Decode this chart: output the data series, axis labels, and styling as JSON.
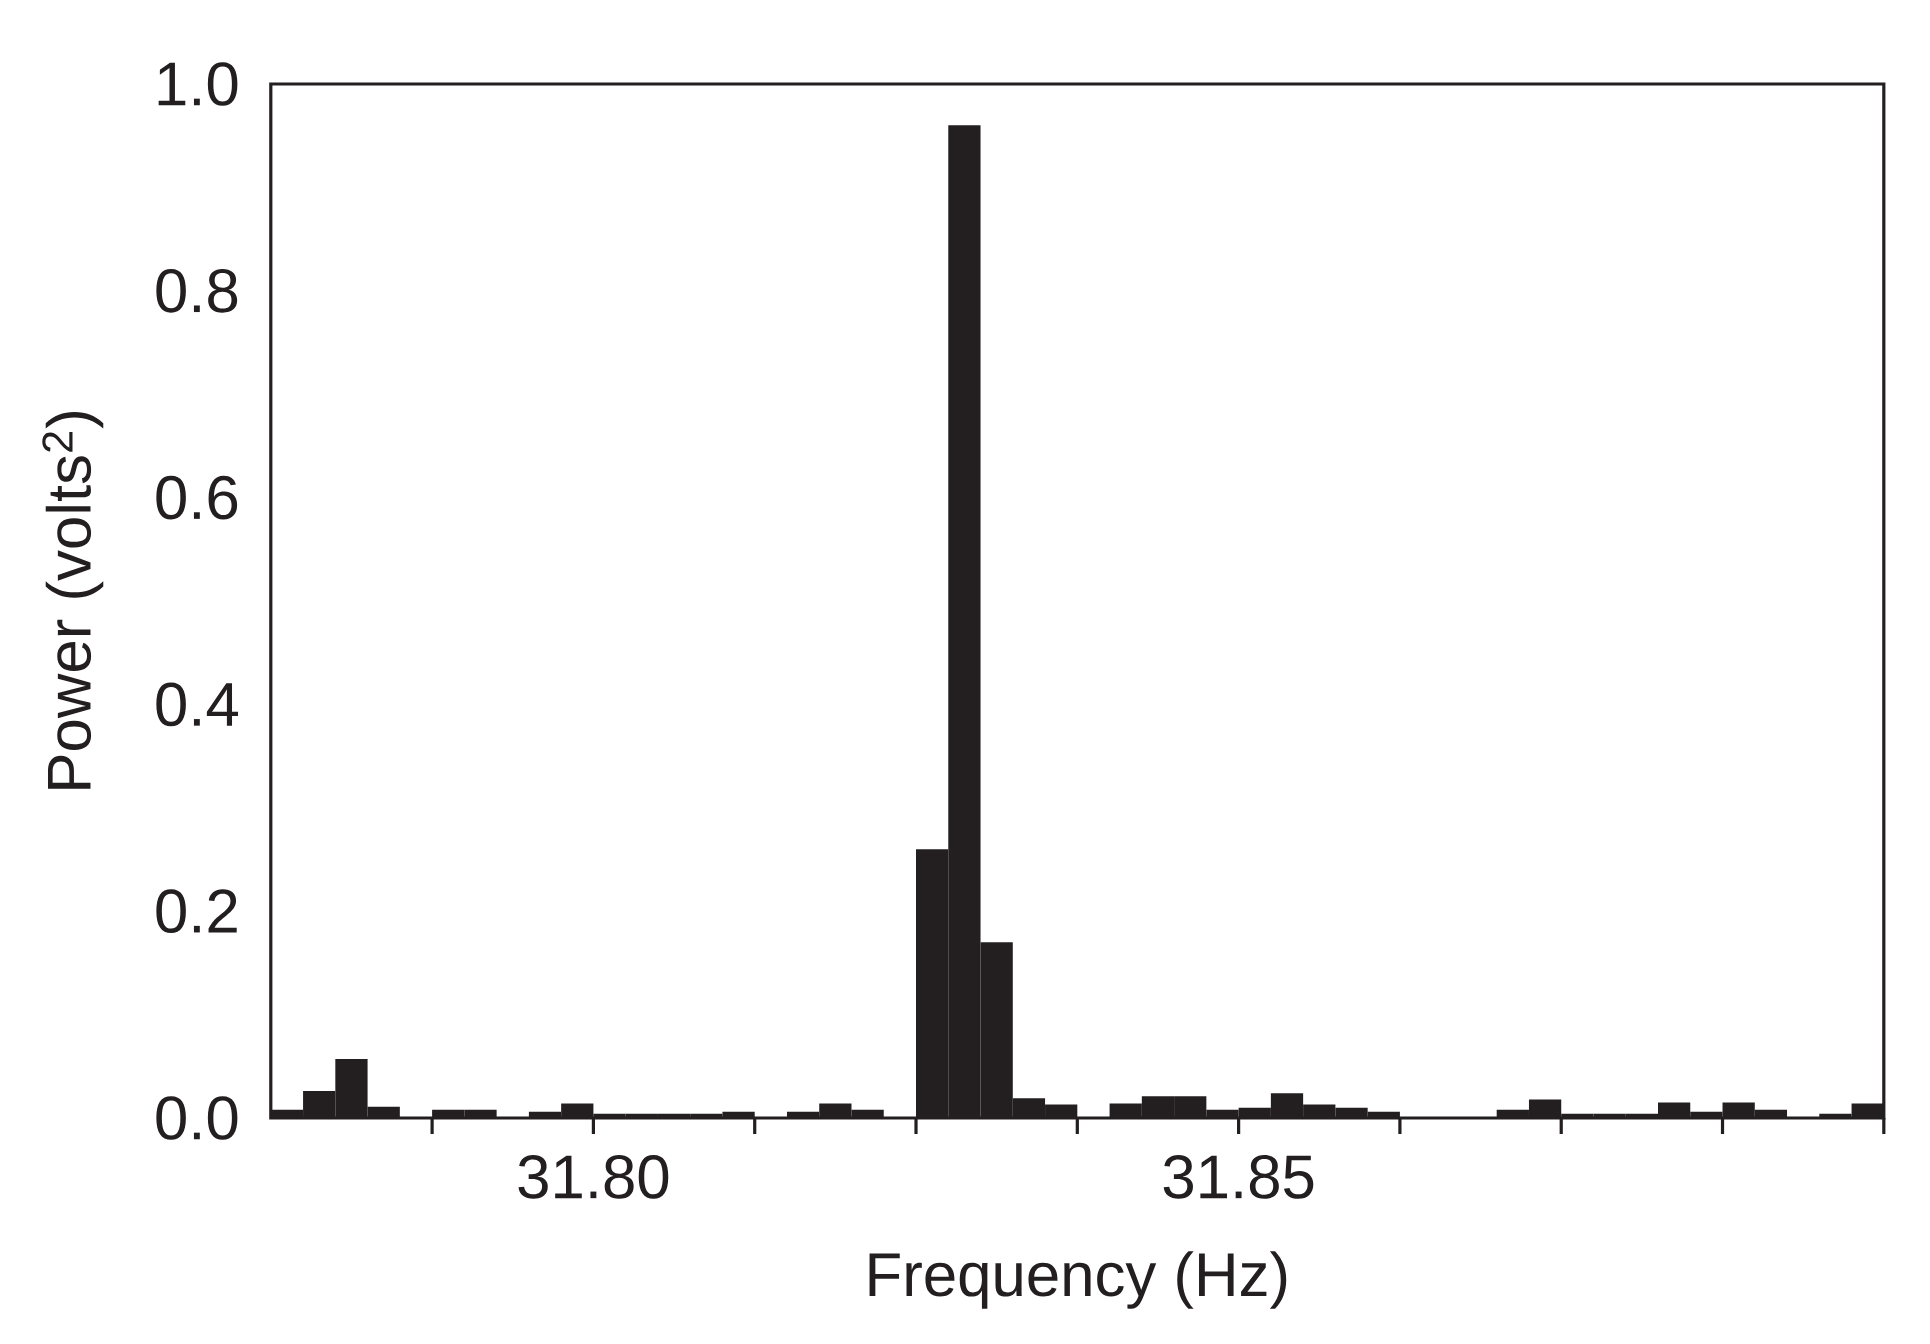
{
  "chart_data": {
    "type": "histogram",
    "xlabel": "Frequency (Hz)",
    "ylabel": "Power (volts$^{2}$)",
    "color": "#231f20",
    "bins": [
      31.775,
      31.7775,
      31.78,
      31.7825,
      31.785,
      31.7875,
      31.79,
      31.7925,
      31.795,
      31.7975,
      31.8,
      31.8025,
      31.805,
      31.8075,
      31.81,
      31.8125,
      31.815,
      31.8175,
      31.82,
      31.8225,
      31.825,
      31.8275,
      31.83,
      31.8325,
      31.835,
      31.8375,
      31.84,
      31.8425,
      31.845,
      31.8475,
      31.85,
      31.8525,
      31.855,
      31.8575,
      31.86,
      31.8625,
      31.865,
      31.8675,
      31.87,
      31.8725,
      31.875,
      31.8775,
      31.88,
      31.8825,
      31.885,
      31.8875,
      31.89,
      31.8925,
      31.895,
      31.8975,
      31.9
    ],
    "values": [
      0.008,
      0.026,
      0.057,
      0.011,
      0,
      0.008,
      0.008,
      0,
      0.006,
      0.014,
      0.004,
      0.004,
      0.004,
      0.004,
      0.006,
      0,
      0.006,
      0.014,
      0.008,
      0,
      0.26,
      0.96,
      0.17,
      0.019,
      0.013,
      0,
      0.014,
      0.021,
      0.021,
      0.008,
      0.01,
      0.024,
      0.013,
      0.01,
      0.006,
      0,
      0,
      0,
      0.008,
      0.018,
      0.004,
      0.004,
      0.004,
      0.015,
      0.006,
      0.015,
      0.008,
      0,
      0.004,
      0.014
    ],
    "xlim": [
      31.775,
      31.9
    ],
    "ylim": [
      0,
      1
    ],
    "xticks": [
      {
        "value": 31.7875,
        "label": null
      },
      {
        "value": 31.8,
        "label": "31.80"
      },
      {
        "value": 31.8125,
        "label": null
      },
      {
        "value": 31.825,
        "label": null
      },
      {
        "value": 31.8375,
        "label": null
      },
      {
        "value": 31.85,
        "label": "31.85"
      },
      {
        "value": 31.8625,
        "label": null
      },
      {
        "value": 31.875,
        "label": null
      },
      {
        "value": 31.8875,
        "label": null
      },
      {
        "value": 31.9,
        "label": null
      }
    ],
    "yticks": [
      {
        "value": 0,
        "label": "0.0"
      },
      0.2,
      0.4,
      0.6,
      0.8,
      {
        "value": 1,
        "label": "1.0"
      }
    ]
  }
}
